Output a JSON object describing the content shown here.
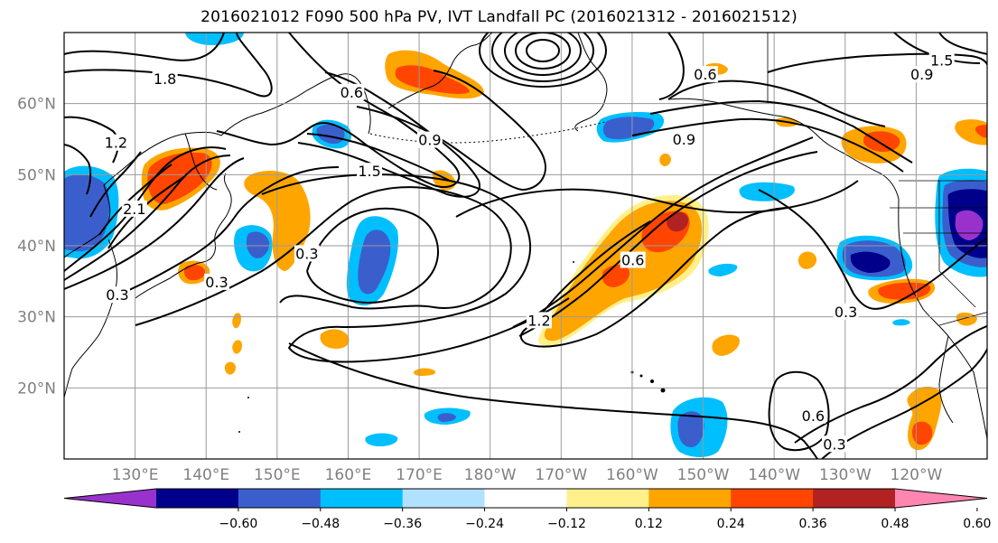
{
  "title": "2016021012 F090 500 hPa PV, IVT Landfall PC (2016021312 - 2016021512)",
  "map": {
    "extent": {
      "lon_min": 120,
      "lon_max": 250,
      "lat_min": 10,
      "lat_max": 70
    },
    "lat_ticks": [
      {
        "value": 20,
        "label": "20°N"
      },
      {
        "value": 30,
        "label": "30°N"
      },
      {
        "value": 40,
        "label": "40°N"
      },
      {
        "value": 50,
        "label": "50°N"
      },
      {
        "value": 60,
        "label": "60°N"
      }
    ],
    "lon_ticks": [
      {
        "value": 130,
        "label": "130°E"
      },
      {
        "value": 140,
        "label": "140°E"
      },
      {
        "value": 150,
        "label": "150°E"
      },
      {
        "value": 160,
        "label": "160°E"
      },
      {
        "value": 170,
        "label": "170°E"
      },
      {
        "value": 180,
        "label": "180°W"
      },
      {
        "value": 190,
        "label": "170°W"
      },
      {
        "value": 200,
        "label": "160°W"
      },
      {
        "value": 210,
        "label": "150°W"
      },
      {
        "value": 220,
        "label": "140°W"
      },
      {
        "value": 230,
        "label": "130°W"
      },
      {
        "value": 240,
        "label": "120°W"
      }
    ],
    "gridline_color": "#9a9a9a",
    "contour_labels": [
      {
        "text": "1.8",
        "lon": 134.2,
        "lat": 63.4
      },
      {
        "text": "0.6",
        "lon": 160.5,
        "lat": 61.5
      },
      {
        "text": "0.6",
        "lon": 210.3,
        "lat": 64.0
      },
      {
        "text": "0.9",
        "lon": 240.8,
        "lat": 64.0
      },
      {
        "text": "1.5",
        "lon": 243.6,
        "lat": 66.0
      },
      {
        "text": "0.9",
        "lon": 171.5,
        "lat": 54.8
      },
      {
        "text": "1.5",
        "lon": 163.0,
        "lat": 50.4
      },
      {
        "text": "0.9",
        "lon": 207.3,
        "lat": 54.9
      },
      {
        "text": "1.2",
        "lon": 127.3,
        "lat": 54.4
      },
      {
        "text": "2.1",
        "lon": 129.9,
        "lat": 45.1
      },
      {
        "text": "0.3",
        "lon": 154.2,
        "lat": 38.8
      },
      {
        "text": "0.3",
        "lon": 141.5,
        "lat": 34.8
      },
      {
        "text": "0.3",
        "lon": 127.5,
        "lat": 33.0
      },
      {
        "text": "0.6",
        "lon": 200.1,
        "lat": 37.9
      },
      {
        "text": "1.2",
        "lon": 186.9,
        "lat": 29.4
      },
      {
        "text": "0.3",
        "lon": 230.1,
        "lat": 30.6
      },
      {
        "text": "0.6",
        "lon": 225.5,
        "lat": 16.0
      },
      {
        "text": "0.3",
        "lon": 228.5,
        "lat": 12.0
      }
    ]
  },
  "colorbar": {
    "colors": [
      "#9932cc",
      "#00008b",
      "#3a5fcd",
      "#00bfff",
      "#b0e2ff",
      "#ffffff",
      "#fff08c",
      "#ffa500",
      "#ff4500",
      "#b22222",
      "#ff86b0"
    ],
    "tick_labels": [
      "−0.60",
      "−0.48",
      "−0.36",
      "−0.24",
      "−0.12",
      "0.12",
      "0.24",
      "0.36",
      "0.48",
      "0.60"
    ]
  }
}
